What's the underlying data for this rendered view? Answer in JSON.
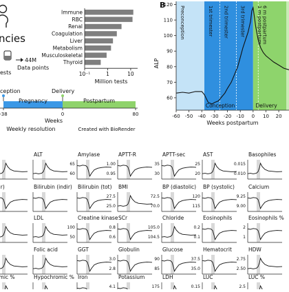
{
  "overview": {
    "title_partial": "ncies",
    "test_label_partial": "ests",
    "data_points_value": "44M",
    "data_points_label": "Data points",
    "timeline": {
      "conception_label": "ception",
      "delivery_label": "Delivery",
      "pregnancy_label": "Pregnancy",
      "postpartum_label": "Postpartum",
      "ticks": [
        "-38",
        "0",
        "80"
      ],
      "weeks_label": "Weeks",
      "resolution_label": "Weekly resolution",
      "credit": "Created with BioRender",
      "colors": {
        "pregnancy": "#3b98e6",
        "postpartum": "#8fd36b"
      }
    }
  },
  "chart_data": [
    {
      "id": "categories_bar",
      "type": "bar",
      "orientation": "horizontal",
      "categories": [
        "Immune",
        "RBC",
        "Renal",
        "Coagulation",
        "Liver",
        "Metabolism",
        "Musculoskeletal",
        "Thyroid"
      ],
      "values": [
        13,
        12,
        4,
        2.5,
        1.7,
        1.4,
        0.9,
        0.5
      ],
      "xscale": "log",
      "xlim": [
        0.1,
        20
      ],
      "xticks": [
        0.1,
        1,
        10
      ],
      "xtick_labels": [
        "10⁻¹",
        "1",
        "10"
      ],
      "xlabel": "Million tests",
      "color": "#7f7f7f"
    },
    {
      "id": "alp_panel",
      "type": "line",
      "panel_label": "B",
      "ylabel": "ALP",
      "xlabel": "Weeks postpartum",
      "xlim": [
        -60,
        28
      ],
      "ylim": [
        52,
        122
      ],
      "xticks": [
        -60,
        -50,
        -40,
        -30,
        -20,
        -10,
        0,
        10,
        20
      ],
      "yticks": [
        60,
        70,
        80,
        90,
        100,
        110,
        120
      ],
      "x": [
        -60,
        -55,
        -50,
        -45,
        -40,
        -38,
        -35,
        -32,
        -30,
        -27,
        -25,
        -22,
        -20,
        -17,
        -15,
        -12,
        -10,
        -8,
        -6,
        -4,
        -2,
        -1,
        0,
        1,
        2,
        4,
        6,
        8,
        10,
        13,
        16,
        20,
        24,
        28
      ],
      "y": [
        63,
        63.5,
        63,
        64,
        64,
        62,
        57,
        56,
        57,
        58,
        60,
        63,
        66,
        70,
        74,
        80,
        86,
        92,
        97,
        102,
        109,
        116,
        118,
        112,
        106,
        97,
        92,
        89,
        87,
        85,
        83,
        81,
        79,
        78
      ],
      "regions": [
        {
          "label": "Preconception",
          "from": -60,
          "to": -38,
          "color": "#c4e3f7"
        },
        {
          "label": "1st trimester",
          "from": -38,
          "to": -26,
          "color": "#2f8fdf"
        },
        {
          "label": "2nd trimester",
          "from": -26,
          "to": -13,
          "color": "#2f8fdf"
        },
        {
          "label": "3rd trimester",
          "from": -13,
          "to": 0,
          "color": "#2f8fdf"
        },
        {
          "label": "1 m postpartum",
          "from": 0,
          "to": 4,
          "color": "#8ed46c"
        },
        {
          "label": "6 m postpartum",
          "from": 4,
          "to": 26,
          "color": "#8ed46c"
        },
        {
          "label": "",
          "from": 26,
          "to": 28,
          "color": "#c9ecb6"
        }
      ],
      "event_labels": [
        "Conception",
        "Delivery"
      ],
      "line_color": "#111111"
    },
    {
      "id": "small_multiples",
      "type": "line",
      "panels": [
        {
          "name": "",
          "shape": "up",
          "ticks": []
        },
        {
          "name": "ALT",
          "shape": "up",
          "ticks": []
        },
        {
          "name": "Amylase",
          "shape": "down",
          "ticks": [
            "65",
            "60"
          ]
        },
        {
          "name": "APTT-R",
          "shape": "down",
          "ticks": [
            "1.00",
            "0.95"
          ]
        },
        {
          "name": "APTT-sec",
          "shape": "down",
          "ticks": [
            "35",
            "30"
          ]
        },
        {
          "name": "AST",
          "shape": "up",
          "ticks": [
            "25",
            "20"
          ]
        },
        {
          "name": "Basophiles",
          "shape": "up",
          "ticks": [
            "0.015",
            "0.010"
          ]
        },
        {
          "name": "(dir)",
          "shape": "down",
          "ticks": []
        },
        {
          "name": "Bilirubin (indir)",
          "shape": "down",
          "ticks": []
        },
        {
          "name": "Bilirubin (tot)",
          "shape": "down",
          "ticks": []
        },
        {
          "name": "BMI",
          "shape": "up",
          "ticks": [
            "27.5",
            "25.0"
          ]
        },
        {
          "name": "BP (diastolic)",
          "shape": "down",
          "ticks": [
            "72.5",
            "70.0"
          ]
        },
        {
          "name": "BP (systolic)",
          "shape": "down",
          "ticks": [
            "120",
            "115"
          ]
        },
        {
          "name": "Calcium",
          "shape": "down",
          "ticks": [
            "9.25",
            "9.00"
          ]
        },
        {
          "name": "",
          "shape": "up",
          "ticks": []
        },
        {
          "name": "LDL",
          "shape": "up",
          "ticks": []
        },
        {
          "name": "Creatine kinase",
          "shape": "down",
          "ticks": [
            "100",
            "50"
          ]
        },
        {
          "name": "SCr",
          "shape": "down",
          "ticks": [
            "0.8",
            "0.6"
          ]
        },
        {
          "name": "Chloride",
          "shape": "up",
          "ticks": [
            "105.0",
            "104.5"
          ]
        },
        {
          "name": "Eosinophils",
          "shape": "down",
          "ticks": [
            "0.2",
            "0.1"
          ]
        },
        {
          "name": "Eosinophils %",
          "shape": "down",
          "ticks": [
            "2",
            "1"
          ]
        },
        {
          "name": "en",
          "shape": "up",
          "ticks": []
        },
        {
          "name": "Folic acid",
          "shape": "up",
          "ticks": []
        },
        {
          "name": "GGT",
          "shape": "down",
          "ticks": []
        },
        {
          "name": "Globulin",
          "shape": "down",
          "ticks": [
            "3.0",
            "2.8"
          ]
        },
        {
          "name": "Glucose",
          "shape": "down",
          "ticks": [
            "90",
            "85"
          ]
        },
        {
          "name": "Hematocrit",
          "shape": "down",
          "ticks": [
            "37.5",
            "35.0"
          ]
        },
        {
          "name": "HDW",
          "shape": "up",
          "ticks": [
            "2.75",
            "2.50"
          ]
        },
        {
          "name": "romic %",
          "shape": "up",
          "ticks": []
        },
        {
          "name": "Hypochromic %",
          "shape": "up",
          "ticks": []
        },
        {
          "name": "Iron",
          "shape": "down",
          "ticks": []
        },
        {
          "name": "Potassium",
          "shape": "down",
          "ticks": [
            "4.1"
          ]
        },
        {
          "name": "LDH",
          "shape": "up",
          "ticks": [
            "175"
          ]
        },
        {
          "name": "LUC",
          "shape": "up",
          "ticks": [
            "0.15"
          ]
        },
        {
          "name": "LUC %",
          "shape": "up",
          "ticks": [
            "2.5"
          ]
        }
      ]
    }
  ]
}
